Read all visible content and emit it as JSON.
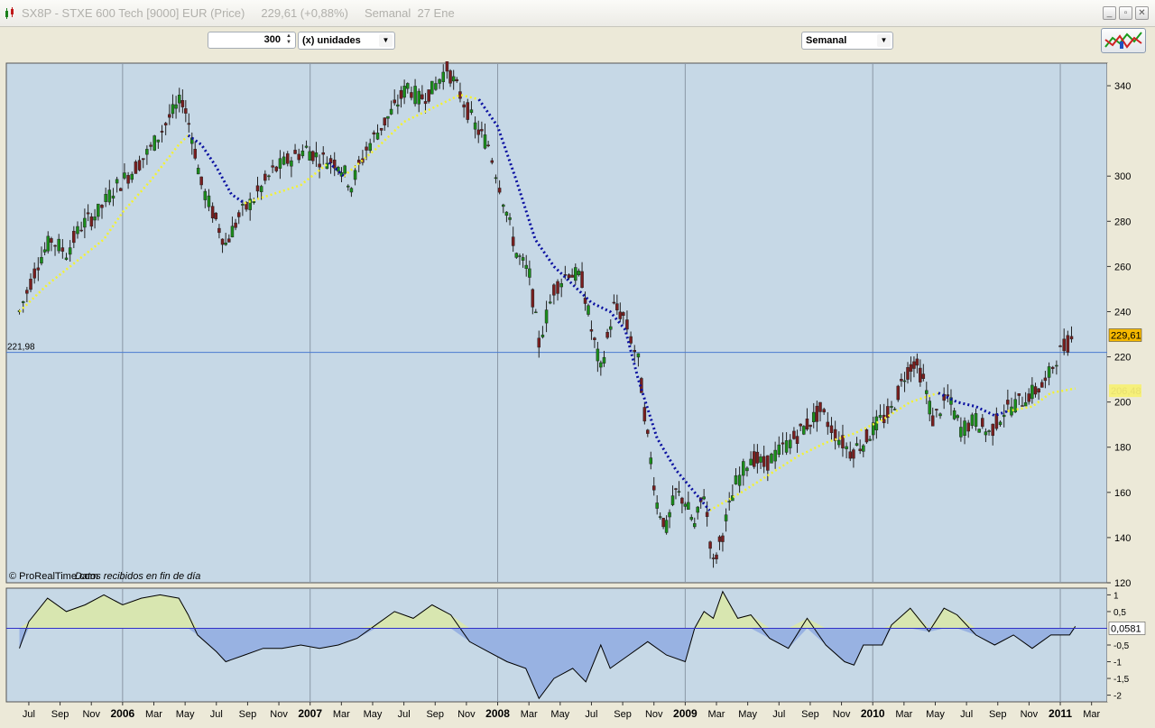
{
  "window": {
    "title": "SX8P - STXE 600 Tech [9000] EUR (Price)     229,61 (+0,88%)     Semanal  27 Ene",
    "buttons": [
      "minimize",
      "restore",
      "close"
    ]
  },
  "toolbar": {
    "quantity_value": "300",
    "unit_select": "(x) unidades",
    "period_select": "Semanal"
  },
  "chart_data": [
    {
      "type": "candlestick",
      "title": "",
      "y_ticks": [
        "340",
        "300",
        "280",
        "260",
        "240",
        "220",
        "200",
        "180",
        "160",
        "140",
        "120"
      ],
      "y_range": [
        120,
        350
      ],
      "reference_line": {
        "value": 221.98,
        "label": "221,98"
      },
      "last_price": {
        "value": 229.61,
        "label": "229,61"
      },
      "ma_label": "206,48",
      "watermark": "© ProRealTime.com",
      "watermark_note": "Datos recibidos en fin de día",
      "x_labels": [
        "Jul",
        "Sep",
        "Nov",
        "2006",
        "Mar",
        "May",
        "Jul",
        "Sep",
        "Nov",
        "2007",
        "Mar",
        "May",
        "Jul",
        "Sep",
        "Nov",
        "2008",
        "Mar",
        "May",
        "Jul",
        "Sep",
        "Nov",
        "2009",
        "Mar",
        "May",
        "Jul",
        "Sep",
        "Nov",
        "2010",
        "Mar",
        "May",
        "Jul",
        "Sep",
        "Nov",
        "2011",
        "Mar"
      ],
      "bold_labels": [
        "2006",
        "2007",
        "2008",
        "2009",
        "2010",
        "2011"
      ],
      "price_path": [
        [
          2005.45,
          240
        ],
        [
          2005.55,
          262
        ],
        [
          2005.62,
          272
        ],
        [
          2005.7,
          266
        ],
        [
          2005.78,
          278
        ],
        [
          2005.87,
          284
        ],
        [
          2005.95,
          294
        ],
        [
          2006.05,
          302
        ],
        [
          2006.15,
          312
        ],
        [
          2006.25,
          326
        ],
        [
          2006.32,
          334
        ],
        [
          2006.37,
          318
        ],
        [
          2006.42,
          296
        ],
        [
          2006.48,
          284
        ],
        [
          2006.55,
          270
        ],
        [
          2006.62,
          282
        ],
        [
          2006.7,
          290
        ],
        [
          2006.8,
          302
        ],
        [
          2006.9,
          308
        ],
        [
          2006.98,
          312
        ],
        [
          2007.05,
          308
        ],
        [
          2007.15,
          306
        ],
        [
          2007.22,
          296
        ],
        [
          2007.3,
          312
        ],
        [
          2007.38,
          322
        ],
        [
          2007.45,
          330
        ],
        [
          2007.52,
          340
        ],
        [
          2007.58,
          334
        ],
        [
          2007.65,
          338
        ],
        [
          2007.73,
          348
        ],
        [
          2007.8,
          336
        ],
        [
          2007.88,
          322
        ],
        [
          2007.95,
          314
        ],
        [
          2008.03,
          290
        ],
        [
          2008.1,
          266
        ],
        [
          2008.17,
          256
        ],
        [
          2008.22,
          226
        ],
        [
          2008.3,
          250
        ],
        [
          2008.38,
          258
        ],
        [
          2008.45,
          254
        ],
        [
          2008.5,
          232
        ],
        [
          2008.55,
          214
        ],
        [
          2008.62,
          242
        ],
        [
          2008.67,
          238
        ],
        [
          2008.75,
          218
        ],
        [
          2008.8,
          184
        ],
        [
          2008.85,
          155
        ],
        [
          2008.9,
          144
        ],
        [
          2008.95,
          160
        ],
        [
          2009.0,
          156
        ],
        [
          2009.05,
          145
        ],
        [
          2009.1,
          160
        ],
        [
          2009.15,
          128
        ],
        [
          2009.2,
          142
        ],
        [
          2009.27,
          164
        ],
        [
          2009.35,
          176
        ],
        [
          2009.42,
          172
        ],
        [
          2009.5,
          178
        ],
        [
          2009.58,
          184
        ],
        [
          2009.65,
          190
        ],
        [
          2009.72,
          196
        ],
        [
          2009.8,
          186
        ],
        [
          2009.88,
          178
        ],
        [
          2009.95,
          182
        ],
        [
          2010.02,
          190
        ],
        [
          2010.1,
          196
        ],
        [
          2010.17,
          212
        ],
        [
          2010.22,
          218
        ],
        [
          2010.27,
          210
        ],
        [
          2010.32,
          192
        ],
        [
          2010.4,
          202
        ],
        [
          2010.47,
          188
        ],
        [
          2010.55,
          192
        ],
        [
          2010.62,
          186
        ],
        [
          2010.7,
          196
        ],
        [
          2010.78,
          200
        ],
        [
          2010.85,
          204
        ],
        [
          2010.92,
          208
        ],
        [
          2010.98,
          220
        ],
        [
          2011.04,
          226
        ],
        [
          2011.08,
          229.61
        ]
      ],
      "ma_blue_segments": [
        [
          [
            2006.35,
            318
          ],
          [
            2006.42,
            314
          ],
          [
            2006.5,
            304
          ],
          [
            2006.58,
            292
          ],
          [
            2006.65,
            288
          ]
        ],
        [
          [
            2007.1,
            306
          ],
          [
            2007.18,
            300
          ]
        ],
        [
          [
            2007.9,
            334
          ],
          [
            2008.0,
            322
          ],
          [
            2008.1,
            298
          ],
          [
            2008.2,
            272
          ],
          [
            2008.3,
            260
          ],
          [
            2008.4,
            252
          ],
          [
            2008.5,
            244
          ],
          [
            2008.6,
            240
          ],
          [
            2008.68,
            232
          ],
          [
            2008.75,
            210
          ],
          [
            2008.85,
            184
          ],
          [
            2008.95,
            170
          ],
          [
            2009.05,
            160
          ],
          [
            2009.13,
            152
          ]
        ],
        [
          [
            2010.35,
            204
          ],
          [
            2010.45,
            200
          ],
          [
            2010.55,
            198
          ],
          [
            2010.65,
            194
          ],
          [
            2010.72,
            196
          ]
        ]
      ],
      "ma_yellow_segments": [
        [
          [
            2005.45,
            240
          ],
          [
            2005.6,
            252
          ],
          [
            2005.75,
            262
          ],
          [
            2005.9,
            272
          ],
          [
            2006.0,
            284
          ],
          [
            2006.15,
            298
          ],
          [
            2006.3,
            314
          ],
          [
            2006.35,
            318
          ]
        ],
        [
          [
            2006.65,
            288
          ],
          [
            2006.8,
            292
          ],
          [
            2006.95,
            296
          ],
          [
            2007.1,
            306
          ]
        ],
        [
          [
            2007.18,
            300
          ],
          [
            2007.35,
            312
          ],
          [
            2007.5,
            324
          ],
          [
            2007.65,
            330
          ],
          [
            2007.8,
            336
          ],
          [
            2007.9,
            334
          ]
        ],
        [
          [
            2009.13,
            152
          ],
          [
            2009.3,
            160
          ],
          [
            2009.45,
            168
          ],
          [
            2009.6,
            176
          ],
          [
            2009.75,
            182
          ],
          [
            2009.9,
            186
          ],
          [
            2010.05,
            192
          ],
          [
            2010.2,
            200
          ],
          [
            2010.35,
            204
          ]
        ],
        [
          [
            2010.72,
            196
          ],
          [
            2010.85,
            198
          ],
          [
            2010.95,
            204
          ],
          [
            2011.08,
            206
          ]
        ]
      ]
    },
    {
      "type": "area",
      "y_ticks": [
        "1",
        "0,5",
        "-0,5",
        "-1",
        "-1,5",
        "-2"
      ],
      "y_range": [
        -2.2,
        1.2
      ],
      "current_label": "0,0581",
      "osc_path": [
        [
          2005.45,
          -0.6
        ],
        [
          2005.5,
          0.2
        ],
        [
          2005.6,
          0.9
        ],
        [
          2005.7,
          0.5
        ],
        [
          2005.8,
          0.7
        ],
        [
          2005.9,
          1.0
        ],
        [
          2006.0,
          0.7
        ],
        [
          2006.1,
          0.9
        ],
        [
          2006.2,
          1.0
        ],
        [
          2006.3,
          0.9
        ],
        [
          2006.35,
          0.4
        ],
        [
          2006.4,
          -0.2
        ],
        [
          2006.5,
          -0.7
        ],
        [
          2006.55,
          -1.0
        ],
        [
          2006.65,
          -0.8
        ],
        [
          2006.75,
          -0.6
        ],
        [
          2006.85,
          -0.6
        ],
        [
          2006.95,
          -0.5
        ],
        [
          2007.05,
          -0.6
        ],
        [
          2007.15,
          -0.5
        ],
        [
          2007.25,
          -0.3
        ],
        [
          2007.35,
          0.1
        ],
        [
          2007.45,
          0.5
        ],
        [
          2007.55,
          0.3
        ],
        [
          2007.65,
          0.7
        ],
        [
          2007.75,
          0.4
        ],
        [
          2007.85,
          -0.4
        ],
        [
          2007.95,
          -0.7
        ],
        [
          2008.05,
          -1.0
        ],
        [
          2008.15,
          -1.2
        ],
        [
          2008.22,
          -2.1
        ],
        [
          2008.3,
          -1.5
        ],
        [
          2008.4,
          -1.2
        ],
        [
          2008.47,
          -1.6
        ],
        [
          2008.55,
          -0.5
        ],
        [
          2008.6,
          -1.2
        ],
        [
          2008.7,
          -0.8
        ],
        [
          2008.8,
          -0.4
        ],
        [
          2008.9,
          -0.8
        ],
        [
          2009.0,
          -1.0
        ],
        [
          2009.05,
          0.0
        ],
        [
          2009.1,
          0.5
        ],
        [
          2009.15,
          0.3
        ],
        [
          2009.2,
          1.1
        ],
        [
          2009.28,
          0.3
        ],
        [
          2009.35,
          0.4
        ],
        [
          2009.45,
          -0.3
        ],
        [
          2009.55,
          -0.6
        ],
        [
          2009.65,
          0.3
        ],
        [
          2009.75,
          -0.5
        ],
        [
          2009.85,
          -1.0
        ],
        [
          2009.9,
          -1.1
        ],
        [
          2009.95,
          -0.5
        ],
        [
          2010.05,
          -0.5
        ],
        [
          2010.1,
          0.1
        ],
        [
          2010.2,
          0.6
        ],
        [
          2010.3,
          -0.1
        ],
        [
          2010.38,
          0.6
        ],
        [
          2010.45,
          0.4
        ],
        [
          2010.55,
          -0.2
        ],
        [
          2010.65,
          -0.5
        ],
        [
          2010.75,
          -0.2
        ],
        [
          2010.85,
          -0.6
        ],
        [
          2010.95,
          -0.2
        ],
        [
          2011.05,
          -0.2
        ],
        [
          2011.08,
          0.0581
        ]
      ]
    }
  ]
}
